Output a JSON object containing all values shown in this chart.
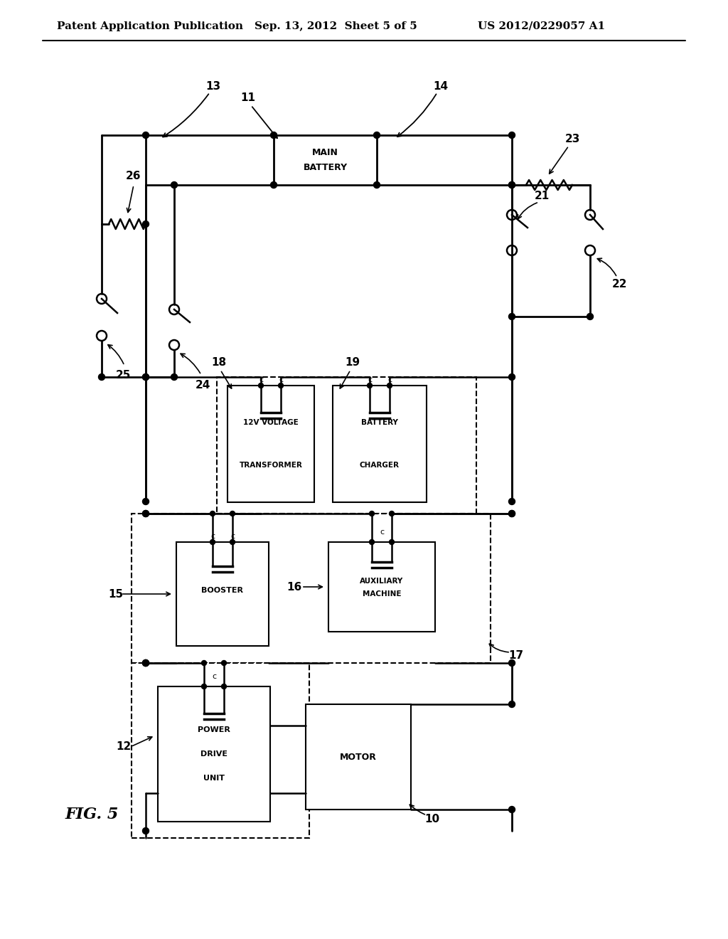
{
  "bg_color": "#ffffff",
  "header_left": "Patent Application Publication",
  "header_mid": "Sep. 13, 2012  Sheet 5 of 5",
  "header_right": "US 2012/0229057 A1",
  "fig_label": "FIG. 5"
}
